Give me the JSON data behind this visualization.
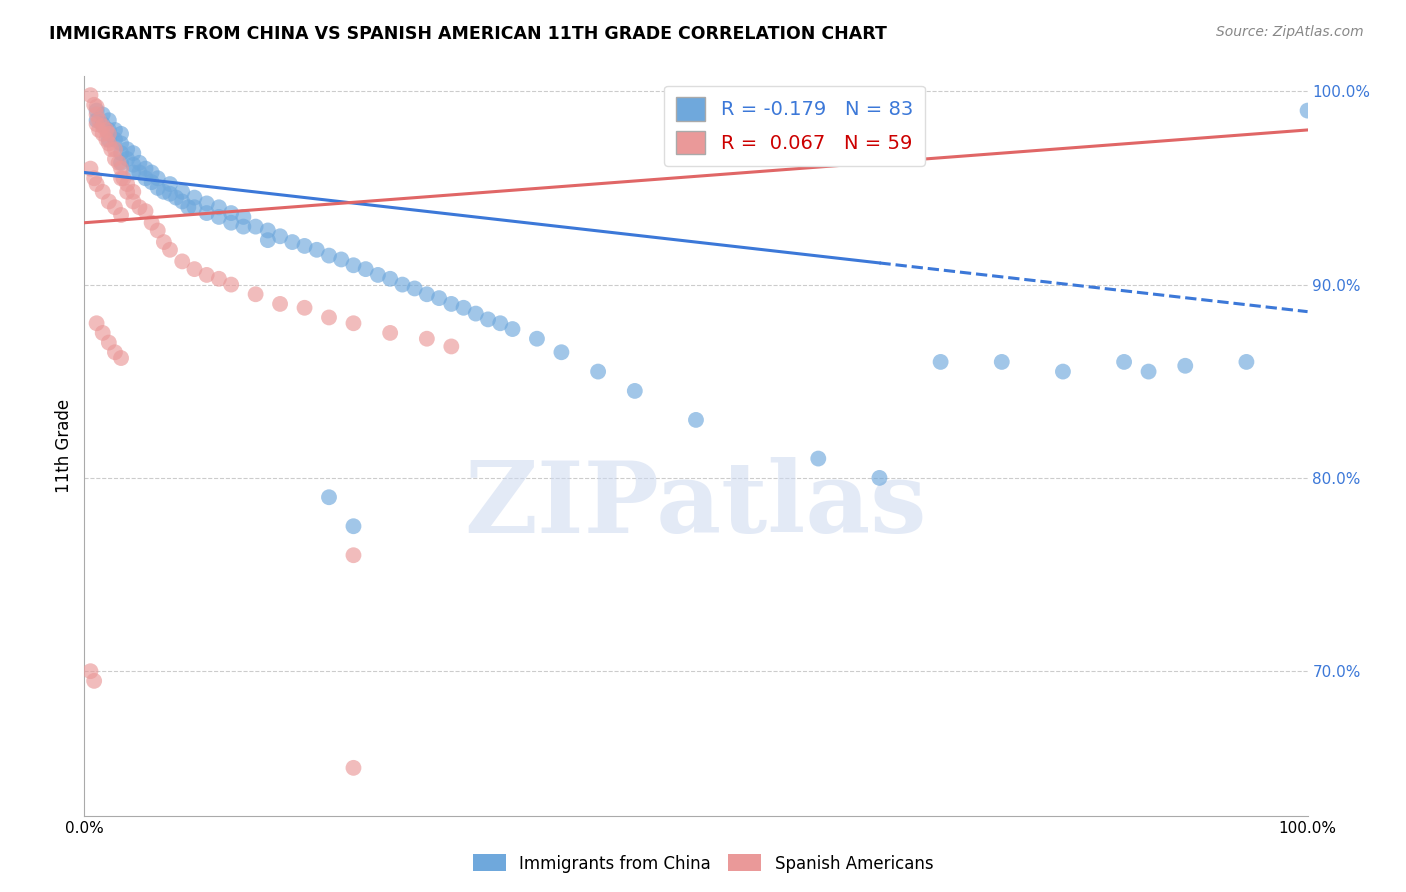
{
  "title": "IMMIGRANTS FROM CHINA VS SPANISH AMERICAN 11TH GRADE CORRELATION CHART",
  "source": "Source: ZipAtlas.com",
  "ylabel": "11th Grade",
  "xlim": [
    0.0,
    1.0
  ],
  "ylim": [
    0.625,
    1.008
  ],
  "yticks": [
    0.7,
    0.8,
    0.9,
    1.0
  ],
  "ytick_labels": [
    "70.0%",
    "80.0%",
    "90.0%",
    "100.0%"
  ],
  "color_blue": "#6fa8dc",
  "color_pink": "#ea9999",
  "color_blue_line": "#3c78d8",
  "color_pink_line": "#e06666",
  "watermark": "ZIPatlas",
  "blue_line_intercept": 0.958,
  "blue_line_slope": -0.072,
  "blue_line_solid_end": 0.65,
  "pink_line_intercept": 0.932,
  "pink_line_slope": 0.048,
  "blue_scatter_x": [
    0.01,
    0.01,
    0.015,
    0.015,
    0.02,
    0.02,
    0.02,
    0.025,
    0.025,
    0.03,
    0.03,
    0.03,
    0.03,
    0.035,
    0.035,
    0.04,
    0.04,
    0.04,
    0.045,
    0.045,
    0.05,
    0.05,
    0.055,
    0.055,
    0.06,
    0.06,
    0.065,
    0.07,
    0.07,
    0.075,
    0.08,
    0.08,
    0.085,
    0.09,
    0.09,
    0.1,
    0.1,
    0.11,
    0.11,
    0.12,
    0.12,
    0.13,
    0.13,
    0.14,
    0.15,
    0.15,
    0.16,
    0.17,
    0.18,
    0.19,
    0.2,
    0.21,
    0.22,
    0.23,
    0.24,
    0.25,
    0.26,
    0.27,
    0.28,
    0.29,
    0.3,
    0.31,
    0.32,
    0.33,
    0.34,
    0.35,
    0.37,
    0.39,
    0.42,
    0.45,
    0.5,
    0.6,
    0.65,
    0.7,
    0.75,
    0.8,
    0.85,
    0.87,
    0.9,
    0.95,
    1.0,
    0.2,
    0.22
  ],
  "blue_scatter_y": [
    0.99,
    0.985,
    0.988,
    0.983,
    0.985,
    0.98,
    0.975,
    0.98,
    0.975,
    0.978,
    0.973,
    0.968,
    0.963,
    0.97,
    0.965,
    0.968,
    0.962,
    0.958,
    0.963,
    0.958,
    0.96,
    0.955,
    0.958,
    0.953,
    0.955,
    0.95,
    0.948,
    0.952,
    0.947,
    0.945,
    0.948,
    0.943,
    0.94,
    0.945,
    0.94,
    0.942,
    0.937,
    0.94,
    0.935,
    0.937,
    0.932,
    0.935,
    0.93,
    0.93,
    0.928,
    0.923,
    0.925,
    0.922,
    0.92,
    0.918,
    0.915,
    0.913,
    0.91,
    0.908,
    0.905,
    0.903,
    0.9,
    0.898,
    0.895,
    0.893,
    0.89,
    0.888,
    0.885,
    0.882,
    0.88,
    0.877,
    0.872,
    0.865,
    0.855,
    0.845,
    0.83,
    0.81,
    0.8,
    0.86,
    0.86,
    0.855,
    0.86,
    0.855,
    0.858,
    0.86,
    0.99,
    0.79,
    0.775
  ],
  "pink_scatter_x": [
    0.005,
    0.008,
    0.01,
    0.01,
    0.01,
    0.012,
    0.012,
    0.015,
    0.015,
    0.018,
    0.018,
    0.02,
    0.02,
    0.022,
    0.025,
    0.025,
    0.028,
    0.03,
    0.03,
    0.032,
    0.035,
    0.035,
    0.04,
    0.04,
    0.045,
    0.05,
    0.055,
    0.06,
    0.065,
    0.07,
    0.08,
    0.09,
    0.1,
    0.11,
    0.12,
    0.14,
    0.16,
    0.18,
    0.2,
    0.22,
    0.25,
    0.28,
    0.3,
    0.005,
    0.008,
    0.01,
    0.015,
    0.02,
    0.025,
    0.03,
    0.005,
    0.008,
    0.01,
    0.015,
    0.02,
    0.025,
    0.03,
    0.22,
    0.22
  ],
  "pink_scatter_y": [
    0.998,
    0.993,
    0.992,
    0.988,
    0.983,
    0.985,
    0.98,
    0.982,
    0.978,
    0.98,
    0.975,
    0.978,
    0.973,
    0.97,
    0.97,
    0.965,
    0.963,
    0.96,
    0.955,
    0.955,
    0.952,
    0.948,
    0.948,
    0.943,
    0.94,
    0.938,
    0.932,
    0.928,
    0.922,
    0.918,
    0.912,
    0.908,
    0.905,
    0.903,
    0.9,
    0.895,
    0.89,
    0.888,
    0.883,
    0.88,
    0.875,
    0.872,
    0.868,
    0.96,
    0.955,
    0.952,
    0.948,
    0.943,
    0.94,
    0.936,
    0.7,
    0.695,
    0.88,
    0.875,
    0.87,
    0.865,
    0.862,
    0.65,
    0.76
  ]
}
